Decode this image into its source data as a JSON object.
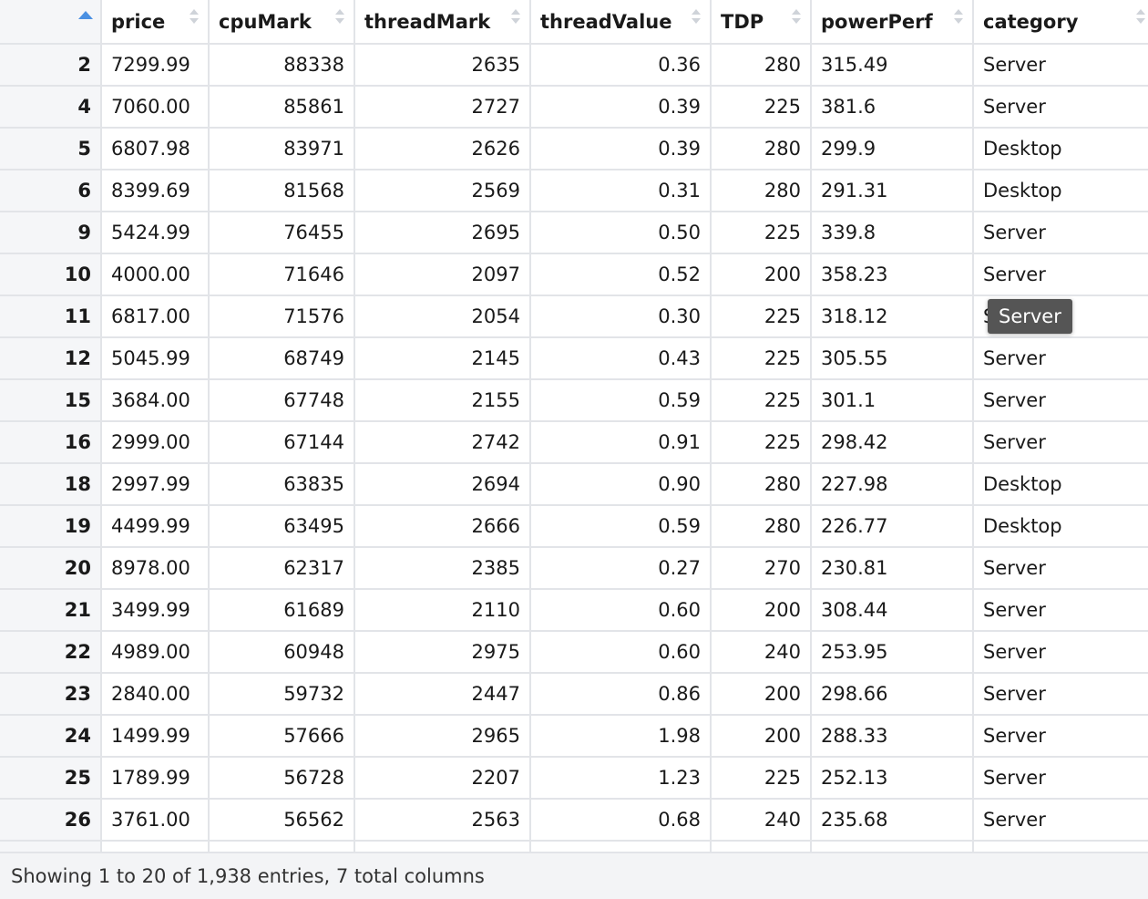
{
  "columns": [
    {
      "key": "rownum",
      "label": ""
    },
    {
      "key": "price",
      "label": "price"
    },
    {
      "key": "cpuMark",
      "label": "cpuMark"
    },
    {
      "key": "threadMark",
      "label": "threadMark"
    },
    {
      "key": "threadValue",
      "label": "threadValue"
    },
    {
      "key": "TDP",
      "label": "TDP"
    },
    {
      "key": "powerPerf",
      "label": "powerPerf"
    },
    {
      "key": "category",
      "label": "category"
    }
  ],
  "rows": [
    [
      "2",
      "7299.99",
      "88338",
      "2635",
      "0.36",
      "280",
      "315.49",
      "Server"
    ],
    [
      "4",
      "7060.00",
      "85861",
      "2727",
      "0.39",
      "225",
      "381.6",
      "Server"
    ],
    [
      "5",
      "6807.98",
      "83971",
      "2626",
      "0.39",
      "280",
      "299.9",
      "Desktop"
    ],
    [
      "6",
      "8399.69",
      "81568",
      "2569",
      "0.31",
      "280",
      "291.31",
      "Desktop"
    ],
    [
      "9",
      "5424.99",
      "76455",
      "2695",
      "0.50",
      "225",
      "339.8",
      "Server"
    ],
    [
      "10",
      "4000.00",
      "71646",
      "2097",
      "0.52",
      "200",
      "358.23",
      "Server"
    ],
    [
      "11",
      "6817.00",
      "71576",
      "2054",
      "0.30",
      "225",
      "318.12",
      "Server"
    ],
    [
      "12",
      "5045.99",
      "68749",
      "2145",
      "0.43",
      "225",
      "305.55",
      "Server"
    ],
    [
      "15",
      "3684.00",
      "67748",
      "2155",
      "0.59",
      "225",
      "301.1",
      "Server"
    ],
    [
      "16",
      "2999.00",
      "67144",
      "2742",
      "0.91",
      "225",
      "298.42",
      "Server"
    ],
    [
      "18",
      "2997.99",
      "63835",
      "2694",
      "0.90",
      "280",
      "227.98",
      "Desktop"
    ],
    [
      "19",
      "4499.99",
      "63495",
      "2666",
      "0.59",
      "280",
      "226.77",
      "Desktop"
    ],
    [
      "20",
      "8978.00",
      "62317",
      "2385",
      "0.27",
      "270",
      "230.81",
      "Server"
    ],
    [
      "21",
      "3499.99",
      "61689",
      "2110",
      "0.60",
      "200",
      "308.44",
      "Server"
    ],
    [
      "22",
      "4989.00",
      "60948",
      "2975",
      "0.60",
      "240",
      "253.95",
      "Server"
    ],
    [
      "23",
      "2840.00",
      "59732",
      "2447",
      "0.86",
      "200",
      "298.66",
      "Server"
    ],
    [
      "24",
      "1499.99",
      "57666",
      "2965",
      "1.98",
      "200",
      "288.33",
      "Server"
    ],
    [
      "25",
      "1789.99",
      "56728",
      "2207",
      "1.23",
      "225",
      "252.13",
      "Server"
    ],
    [
      "26",
      "3761.00",
      "56562",
      "2563",
      "0.68",
      "240",
      "235.68",
      "Server"
    ],
    [
      "",
      "",
      "",
      "",
      "",
      "",
      "",
      ""
    ]
  ],
  "tooltip": "Server",
  "footer": "Showing 1 to 20 of 1,938 entries, 7 total columns",
  "colors": {
    "sort_active": "#4a90e2",
    "tooltip_bg": "#555555",
    "rownum_bg": "#f5f6f8"
  }
}
